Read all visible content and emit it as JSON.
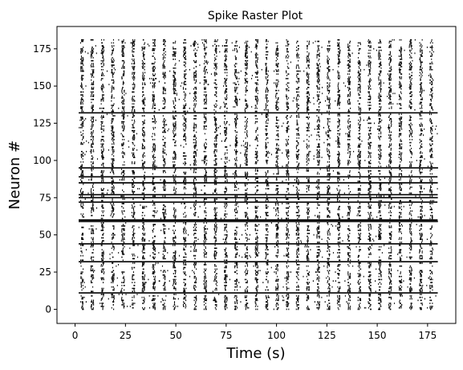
{
  "chart_data": {
    "type": "scatter",
    "marker": "vertical-tick",
    "title": "Spike Raster Plot",
    "xlabel": "Time (s)",
    "ylabel": "Neuron #",
    "xlim": [
      -9,
      189
    ],
    "ylim": [
      -9.5,
      190
    ],
    "xticks": [
      0,
      25,
      50,
      75,
      100,
      125,
      150,
      175
    ],
    "yticks": [
      0,
      25,
      50,
      75,
      100,
      125,
      150,
      175
    ],
    "xtick_labels": [
      "0",
      "25",
      "50",
      "75",
      "100",
      "125",
      "150",
      "175"
    ],
    "ytick_labels": [
      "0",
      "25",
      "50",
      "75",
      "100",
      "125",
      "150",
      "175"
    ],
    "n_neurons": 182,
    "time_range": [
      0,
      180
    ],
    "burst_period_s": 5.1,
    "burst_times": [
      3,
      8.1,
      13.2,
      18.3,
      23.4,
      28.5,
      33.6,
      38.7,
      43.8,
      48.9,
      54,
      59.1,
      64.2,
      69.3,
      74.4,
      79.5,
      84.6,
      89.7,
      94.8,
      99.9,
      105,
      110.1,
      115.2,
      120.3,
      125.4,
      130.5,
      135.6,
      140.7,
      145.8,
      150.9,
      156,
      161.1,
      166.2,
      171.3,
      176.4
    ],
    "tonic_neurons": [
      11,
      32,
      44,
      59,
      60,
      72,
      75,
      77,
      85,
      89,
      95,
      132
    ],
    "grid": false,
    "legend": "none",
    "color": "#000000"
  }
}
